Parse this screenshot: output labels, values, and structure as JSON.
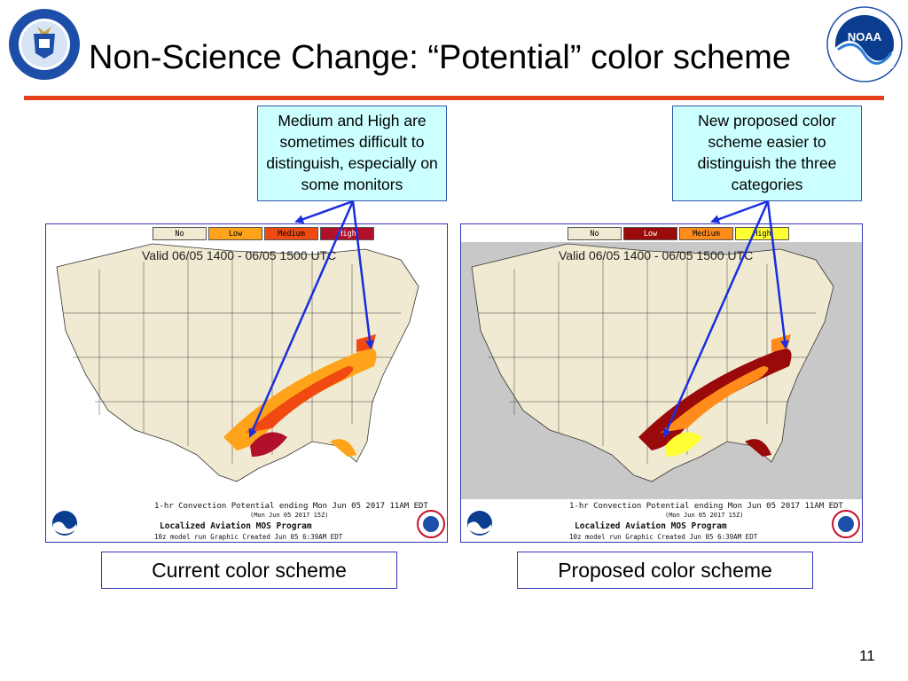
{
  "slide": {
    "title": "Non-Science Change: “Potential” color scheme",
    "page_number": "11",
    "accent_rule_color": "#e8401c"
  },
  "logos": {
    "left": {
      "name": "department-of-commerce-seal-icon"
    },
    "right": {
      "name": "noaa-logo-icon"
    }
  },
  "callouts": {
    "left": "Medium and High are sometimes difficult to distinguish, especially on some monitors",
    "right": "New proposed color scheme easier to distinguish the three categories"
  },
  "panels": {
    "current": {
      "label": "Current color scheme",
      "legend": [
        {
          "label": "No",
          "color": "#f0ead2",
          "text_color": "#000000"
        },
        {
          "label": "Low",
          "color": "#ffa31a",
          "text_color": "#000000"
        },
        {
          "label": "Medium",
          "color": "#f04a12",
          "text_color": "#000000"
        },
        {
          "label": "High",
          "color": "#b0102a",
          "text_color": "#ffffff"
        }
      ],
      "valid_text": "Valid 06/05 1400 - 06/05 1500 UTC",
      "caption_line1": "1-hr Convection Potential ending Mon Jun 05 2017 11AM EDT",
      "caption_line2": "(Mon Jun 05 2017 15Z)",
      "caption_line3": "Localized Aviation MOS Program",
      "caption_line4": "10z model run Graphic Created Jun 05  6:39AM EDT"
    },
    "proposed": {
      "label": "Proposed color scheme",
      "legend": [
        {
          "label": "No",
          "color": "#f0ead2",
          "text_color": "#000000"
        },
        {
          "label": "Low",
          "color": "#9a0a0a",
          "text_color": "#ffffff"
        },
        {
          "label": "Medium",
          "color": "#ff8c1a",
          "text_color": "#000000"
        },
        {
          "label": "High",
          "color": "#ffff33",
          "text_color": "#000000"
        }
      ],
      "valid_text": "Valid 06/05 1400 - 06/05 1500 UTC",
      "caption_line1": "1-hr Convection Potential ending Mon Jun 05 2017 11AM EDT",
      "caption_line2": "(Mon Jun 05 2017 15Z)",
      "caption_line3": "Localized Aviation MOS Program",
      "caption_line4": "10z model run Graphic Created Jun 05  6:39AM EDT"
    }
  }
}
